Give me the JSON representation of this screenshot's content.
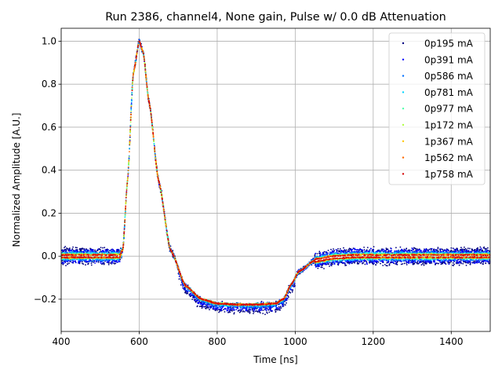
{
  "chart_data": {
    "type": "scatter",
    "title": "Run 2386, channel4, None gain, Pulse w/ 0.0 dB Attenuation",
    "xlabel": "Time [ns]",
    "ylabel": "Normalized Amplitude [A.U.]",
    "xlim": [
      400,
      1500
    ],
    "ylim": [
      -0.35,
      1.06
    ],
    "xticks": [
      400,
      600,
      800,
      1000,
      1200,
      1400
    ],
    "xtick_labels": [
      "400",
      "600",
      "800",
      "1000",
      "1200",
      "1400"
    ],
    "yticks": [
      -0.2,
      0.0,
      0.2,
      0.4,
      0.6,
      0.8,
      1.0
    ],
    "ytick_labels": [
      "−0.2",
      "0.0",
      "0.2",
      "0.4",
      "0.6",
      "0.8",
      "1.0"
    ],
    "grid": true,
    "legend_position": "top-right",
    "pulse_shape": {
      "x": [
        400,
        550,
        558,
        570,
        585,
        600,
        610,
        625,
        650,
        680,
        720,
        760,
        800,
        850,
        900,
        950,
        970,
        990,
        1010,
        1050,
        1100,
        1150,
        1200,
        1300,
        1400,
        1500
      ],
      "y": [
        0.0,
        0.0,
        0.03,
        0.35,
        0.85,
        1.0,
        0.95,
        0.72,
        0.35,
        0.03,
        -0.14,
        -0.2,
        -0.22,
        -0.225,
        -0.225,
        -0.22,
        -0.2,
        -0.13,
        -0.07,
        -0.02,
        -0.005,
        0.0,
        0.0,
        0.0,
        0.0,
        0.0
      ]
    },
    "series": [
      {
        "name": "0p195 mA",
        "color": "#00007f",
        "baseline_spread": 0.035,
        "tail_offset": -0.03
      },
      {
        "name": "0p391 mA",
        "color": "#0000ff",
        "baseline_spread": 0.028,
        "tail_offset": -0.02
      },
      {
        "name": "0p586 mA",
        "color": "#0070ff",
        "baseline_spread": 0.02,
        "tail_offset": -0.01
      },
      {
        "name": "0p781 mA",
        "color": "#00d4ff",
        "baseline_spread": 0.015,
        "tail_offset": -0.004
      },
      {
        "name": "0p977 mA",
        "color": "#4dffaa",
        "baseline_spread": 0.012,
        "tail_offset": 0.0
      },
      {
        "name": "1p172 mA",
        "color": "#b1ff46",
        "baseline_spread": 0.01,
        "tail_offset": 0.0
      },
      {
        "name": "1p367 mA",
        "color": "#ffc400",
        "baseline_spread": 0.009,
        "tail_offset": 0.0
      },
      {
        "name": "1p562 mA",
        "color": "#ff6800",
        "baseline_spread": 0.008,
        "tail_offset": 0.0
      },
      {
        "name": "1p758 mA",
        "color": "#d40000",
        "baseline_spread": 0.007,
        "tail_offset": 0.0
      }
    ]
  }
}
